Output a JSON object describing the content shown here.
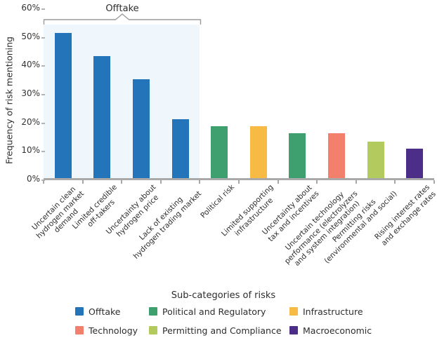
{
  "chart_data": {
    "type": "bar",
    "title": "",
    "ylabel": "Frequency of risk mentioning",
    "xlabel": "",
    "ylim": [
      0,
      60
    ],
    "yticks": [
      "0%",
      "10%",
      "20%",
      "30%",
      "40%",
      "50%",
      "60%"
    ],
    "grid": false,
    "legend_position": "bottom",
    "annotation": {
      "label": "Offtake",
      "from_bar": 0,
      "to_bar": 3,
      "highlight_color": "#eff6fc"
    },
    "bars": [
      {
        "category": "Uncertain clean\nhydrogen market\ndemand",
        "value": 51,
        "group": "Offtake"
      },
      {
        "category": "Limited credible\noff-takers",
        "value": 43,
        "group": "Offtake"
      },
      {
        "category": "Uncertainty about\nhydrogen price",
        "value": 35,
        "group": "Offtake"
      },
      {
        "category": "Lack of existing\nhydrogen trading market",
        "value": 21,
        "group": "Offtake"
      },
      {
        "category": "Political risk",
        "value": 18.5,
        "group": "Political and Regulatory"
      },
      {
        "category": "Limited supporting\ninfrastructure",
        "value": 18.5,
        "group": "Infrastructure"
      },
      {
        "category": "Uncertainty about\ntax and incentives",
        "value": 16,
        "group": "Political and Regulatory"
      },
      {
        "category": "Uncertain technology\nperformance (electrolyzers\nand system integration)",
        "value": 16,
        "group": "Technology"
      },
      {
        "category": "Permitting risks\n(environmental and social)",
        "value": 13,
        "group": "Permitting and Compliance"
      },
      {
        "category": "Rising interest rates\nand exchange rates",
        "value": 10.5,
        "group": "Macroeconomic"
      }
    ],
    "legend": {
      "title": "Sub-categories of risks",
      "items": [
        {
          "label": "Offtake",
          "color": "#2374b9"
        },
        {
          "label": "Political and Regulatory",
          "color": "#3ea06f"
        },
        {
          "label": "Infrastructure",
          "color": "#f7ba43"
        },
        {
          "label": "Technology",
          "color": "#f2806c"
        },
        {
          "label": "Permitting and Compliance",
          "color": "#b3cb5e"
        },
        {
          "label": "Macroeconomic",
          "color": "#4c2e88"
        }
      ]
    },
    "colors": {
      "axis": "#a9a9a9",
      "bracket": "#9b9b9b",
      "text": "#2d2d2d"
    }
  }
}
